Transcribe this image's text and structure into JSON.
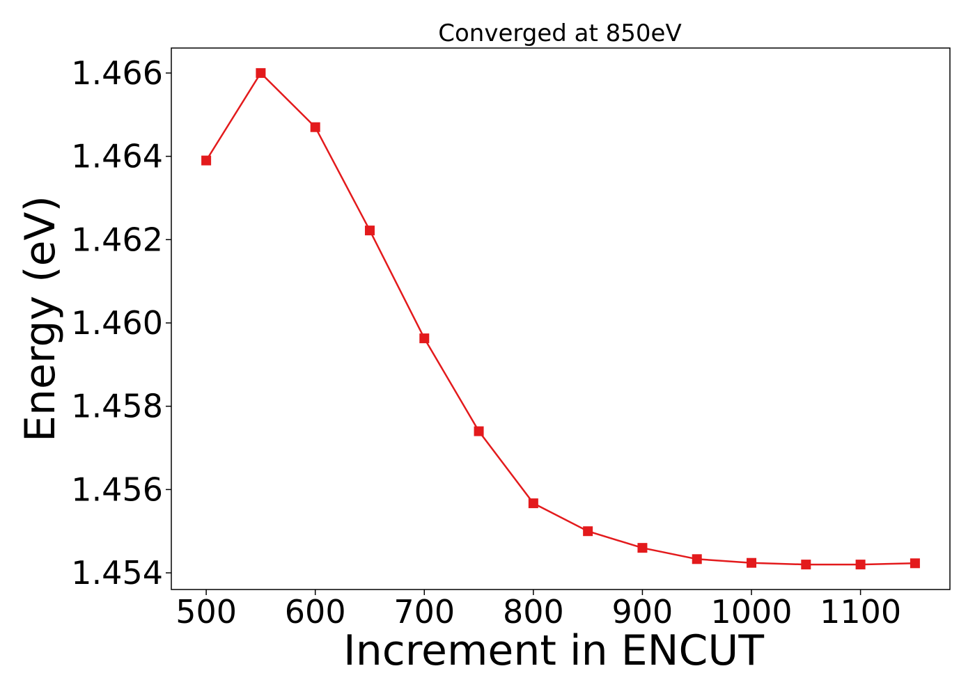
{
  "chart_data": {
    "type": "line",
    "title": "Converged at 850eV",
    "xlabel": "Increment in ENCUT",
    "ylabel": "Energy (eV)",
    "xlim": [
      468,
      1182
    ],
    "ylim": [
      1.4536,
      1.4666
    ],
    "x_ticks": [
      500,
      600,
      700,
      800,
      900,
      1000,
      1100
    ],
    "x_tick_labels": [
      "500",
      "600",
      "700",
      "800",
      "900",
      "1000",
      "1100"
    ],
    "y_ticks": [
      1.454,
      1.456,
      1.458,
      1.46,
      1.462,
      1.464,
      1.466
    ],
    "y_tick_labels": [
      "1.454",
      "1.456",
      "1.458",
      "1.460",
      "1.462",
      "1.464",
      "1.466"
    ],
    "grid": false,
    "series": [
      {
        "color": "#e31a1c",
        "marker": "square",
        "x": [
          500,
          550,
          600,
          650,
          700,
          750,
          800,
          850,
          900,
          950,
          1000,
          1050,
          1100,
          1150
        ],
        "y": [
          1.4639,
          1.466,
          1.4647,
          1.46222,
          1.45963,
          1.4574,
          1.45567,
          1.455,
          1.4546,
          1.45433,
          1.45424,
          1.4542,
          1.4542,
          1.45423
        ]
      }
    ]
  }
}
